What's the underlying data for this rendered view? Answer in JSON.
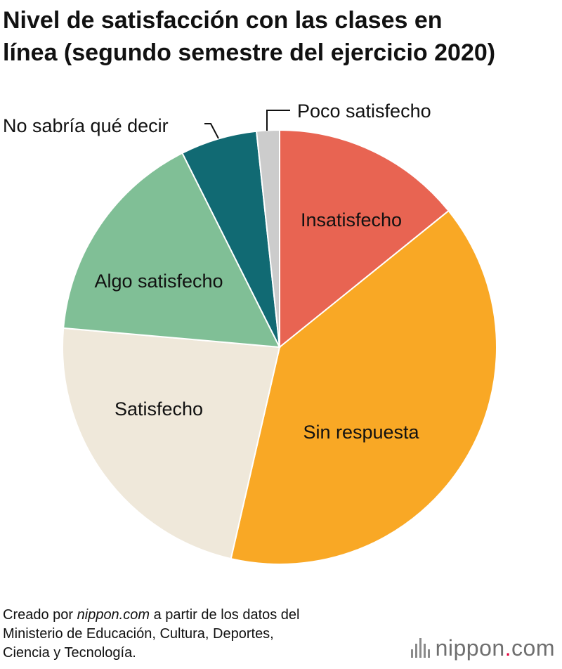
{
  "title_line1": "Nivel de satisfacción con las clases en",
  "title_line2": "línea (segundo semestre del ejercicio 2020)",
  "chart_data": {
    "type": "pie",
    "slices": [
      {
        "label": "Insatisfecho",
        "value": 14.2,
        "color": "#e86452"
      },
      {
        "label": "Sin respuesta",
        "value": 39.4,
        "color": "#f9a825"
      },
      {
        "label": "Satisfecho",
        "value": 22.8,
        "color": "#efe8da"
      },
      {
        "label": "Algo satisfecho",
        "value": 16.2,
        "color": "#80bf96"
      },
      {
        "label": "No sabría qué decir",
        "value": 5.7,
        "color": "#116a73"
      },
      {
        "label": "Poco satisfecho",
        "value": 1.7,
        "color": "#cccccc"
      }
    ],
    "start": "12 o'clock",
    "direction": "clockwise"
  },
  "source": {
    "prefix": "Creado por ",
    "site": "nippon.com",
    "rest_line1": " a partir de los datos del",
    "line2": "Ministerio de Educación, Cultura, Deportes,",
    "line3": "Ciencia y Tecnología."
  },
  "logo": {
    "name": "nippon",
    "dot": ".",
    "suffix": "com"
  }
}
